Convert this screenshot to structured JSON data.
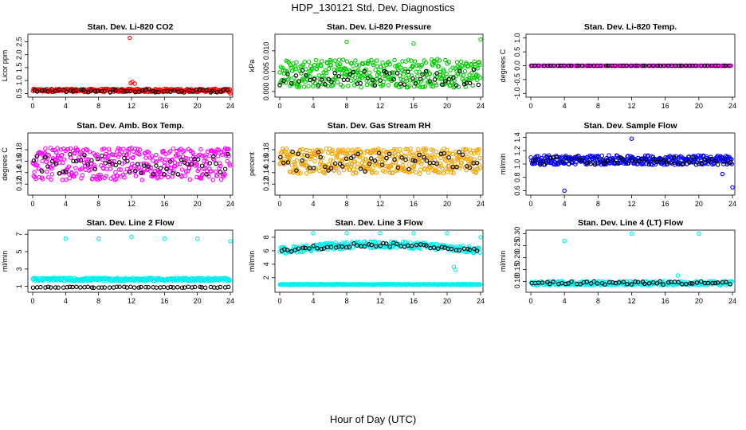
{
  "figure": {
    "title": "HDP_130121  Std. Dev. Diagnostics",
    "xlabel": "Hour of Day (UTC)"
  },
  "colors": {
    "red": "#ff0000",
    "green": "#00cc00",
    "magenta": "#ff00ff",
    "orange": "#f5a300",
    "blue": "#0000ff",
    "cyan": "#00f0f0",
    "black": "#000000"
  },
  "chart_data": [
    {
      "type": "scatter",
      "title": "Stan. Dev. Li-820 CO2",
      "ylabel": "Licor ppm",
      "xlim": [
        0,
        24
      ],
      "ylim": [
        0.45,
        2.7
      ],
      "xticks": [
        "0",
        "4",
        "8",
        "12",
        "16",
        "20",
        "24"
      ],
      "yticks": [
        "0.5",
        "1.0",
        "1.5",
        "2.0",
        "2.5"
      ],
      "series": [
        {
          "color": "#ff0000",
          "pattern": {
            "base": 0.62,
            "spread": 0.06,
            "n": 300
          },
          "extra": [
            [
              11.8,
              2.65
            ],
            [
              11.9,
              0.9
            ],
            [
              12.1,
              0.95
            ],
            [
              12.4,
              0.88
            ],
            [
              24.0,
              0.5
            ]
          ]
        },
        {
          "color": "#000000",
          "pattern": {
            "base": 0.6,
            "spread": 0.06,
            "n": 55
          }
        }
      ]
    },
    {
      "type": "scatter",
      "title": "Stan. Dev. Li-820 Pressure",
      "ylabel": "kPa",
      "xlim": [
        0,
        24
      ],
      "ylim": [
        -0.0008,
        0.0135
      ],
      "xticks": [
        "0",
        "4",
        "8",
        "12",
        "16",
        "20",
        "24"
      ],
      "yticks": [
        "0.000",
        "0.005",
        "0.010"
      ],
      "series": [
        {
          "color": "#00cc00",
          "pattern": {
            "base": 0.0045,
            "spread": 0.0035,
            "n": 380
          },
          "extra": [
            [
              8.0,
              0.0122
            ],
            [
              16.0,
              0.0118
            ],
            [
              24.0,
              0.0128
            ]
          ]
        },
        {
          "color": "#000000",
          "pattern": {
            "base": 0.0035,
            "spread": 0.002,
            "n": 55
          }
        }
      ]
    },
    {
      "type": "scatter",
      "title": "Stan. Dev. Li-820 Temp.",
      "ylabel": "degrees C",
      "xlim": [
        0,
        24
      ],
      "ylim": [
        -1.05,
        1.05
      ],
      "xticks": [
        "0",
        "4",
        "8",
        "12",
        "16",
        "20",
        "24"
      ],
      "yticks": [
        "-1.0",
        "-0.5",
        "0.0",
        "0.5",
        "1.0"
      ],
      "series": [
        {
          "color": "#ff00ff",
          "pattern": {
            "base": 0.0,
            "spread": 0.0,
            "n": 160
          }
        },
        {
          "color": "#000000",
          "pattern": {
            "base": 0.0,
            "spread": 0.0,
            "n": 55
          }
        }
      ]
    },
    {
      "type": "scatter",
      "title": "Stan. Dev. Amb. Box Temp.",
      "ylabel": "degrees C",
      "xlim": [
        0,
        24
      ],
      "ylim": [
        0.105,
        0.205
      ],
      "xticks": [
        "0",
        "4",
        "8",
        "12",
        "16",
        "20",
        "24"
      ],
      "yticks": [
        "0.12",
        "0.14",
        "0.16",
        "0.18"
      ],
      "series": [
        {
          "color": "#ff00ff",
          "pattern": {
            "base": 0.155,
            "spread": 0.028,
            "n": 380
          }
        },
        {
          "color": "#000000",
          "pattern": {
            "base": 0.155,
            "spread": 0.018,
            "n": 55
          }
        }
      ]
    },
    {
      "type": "scatter",
      "title": "Stan. Dev. Gas Stream RH",
      "ylabel": "percent",
      "xlim": [
        0,
        24
      ],
      "ylim": [
        0.105,
        0.205
      ],
      "xticks": [
        "0",
        "4",
        "8",
        "12",
        "16",
        "20",
        "24"
      ],
      "yticks": [
        "0.12",
        "0.14",
        "0.16",
        "0.18"
      ],
      "series": [
        {
          "color": "#f5a300",
          "pattern": {
            "base": 0.16,
            "spread": 0.022,
            "n": 420
          }
        },
        {
          "color": "#000000",
          "pattern": {
            "base": 0.16,
            "spread": 0.018,
            "n": 55
          }
        }
      ]
    },
    {
      "type": "scatter",
      "title": "Stan. Dev. Sample Flow",
      "ylabel": "ml/min",
      "xlim": [
        0,
        24
      ],
      "ylim": [
        0.57,
        1.43
      ],
      "xticks": [
        "0",
        "4",
        "8",
        "12",
        "16",
        "20",
        "24"
      ],
      "yticks": [
        "0.6",
        "0.8",
        "1.0",
        "1.2",
        "1.4"
      ],
      "series": [
        {
          "color": "#0000ff",
          "pattern": {
            "base": 1.06,
            "spread": 0.07,
            "n": 360
          },
          "extra": [
            [
              4.0,
              0.6
            ],
            [
              12.0,
              1.38
            ],
            [
              24.0,
              0.65
            ],
            [
              22.8,
              0.85
            ]
          ]
        },
        {
          "color": "#000000",
          "pattern": {
            "base": 1.05,
            "spread": 0.06,
            "n": 55
          }
        }
      ]
    },
    {
      "type": "scatter",
      "title": "Stan. Dev. Line 2 Flow",
      "ylabel": "ml/min",
      "xlim": [
        0,
        24
      ],
      "ylim": [
        0.6,
        7.2
      ],
      "xticks": [
        "0",
        "4",
        "8",
        "12",
        "16",
        "20",
        "24"
      ],
      "yticks": [
        "1",
        "3",
        "5",
        "7"
      ],
      "series": [
        {
          "color": "#00f0f0",
          "pattern": {
            "base": 1.8,
            "spread": 0.18,
            "n": 320
          },
          "extra": [
            [
              4.0,
              6.5
            ],
            [
              8.0,
              6.5
            ],
            [
              12.0,
              6.7
            ],
            [
              16.0,
              6.5
            ],
            [
              20.0,
              6.5
            ],
            [
              24.0,
              6.2
            ]
          ]
        },
        {
          "color": "#000000",
          "pattern": {
            "base": 0.9,
            "spread": 0.05,
            "n": 55
          }
        }
      ]
    },
    {
      "type": "scatter",
      "title": "Stan. Dev. Line 3 Flow",
      "ylabel": "ml/min",
      "xlim": [
        0,
        24
      ],
      "ylim": [
        0.2,
        8.7
      ],
      "xticks": [
        "0",
        "4",
        "8",
        "12",
        "16",
        "20",
        "24"
      ],
      "yticks": [
        "2",
        "4",
        "6",
        "8"
      ],
      "series": [
        {
          "color": "#00f0f0",
          "pattern": {
            "base": 1.0,
            "spread": 0.06,
            "n": 300
          }
        },
        {
          "color": "#00f0f0",
          "pattern": {
            "base": 6.5,
            "spread": 0.5,
            "n": 260,
            "arch": true
          },
          "extra": [
            [
              4.0,
              8.6
            ],
            [
              8.0,
              8.6
            ],
            [
              12.0,
              8.6
            ],
            [
              16.0,
              8.6
            ],
            [
              20.0,
              8.6
            ],
            [
              24.0,
              8.0
            ],
            [
              21.0,
              3.2
            ],
            [
              20.8,
              3.6
            ]
          ]
        },
        {
          "color": "#000000",
          "pattern": {
            "base": 6.5,
            "spread": 0.3,
            "n": 55,
            "arch": true
          }
        }
      ]
    },
    {
      "type": "scatter",
      "title": "Stan. Dev. Line 4 (LT) Flow",
      "ylabel": "ml/min",
      "xlim": [
        0,
        24
      ],
      "ylim": [
        0.065,
        0.305
      ],
      "xticks": [
        "0",
        "4",
        "8",
        "12",
        "16",
        "20",
        "24"
      ],
      "yticks": [
        "0.10",
        "0.15",
        "0.20",
        "0.25",
        "0.30"
      ],
      "series": [
        {
          "color": "#00f0f0",
          "pattern": {
            "base": 0.093,
            "spread": 0.009,
            "n": 320
          },
          "extra": [
            [
              4.0,
              0.27
            ],
            [
              12.0,
              0.3
            ],
            [
              20.0,
              0.3
            ],
            [
              17.5,
              0.125
            ]
          ]
        },
        {
          "color": "#000000",
          "pattern": {
            "base": 0.094,
            "spread": 0.007,
            "n": 55
          }
        }
      ]
    }
  ]
}
